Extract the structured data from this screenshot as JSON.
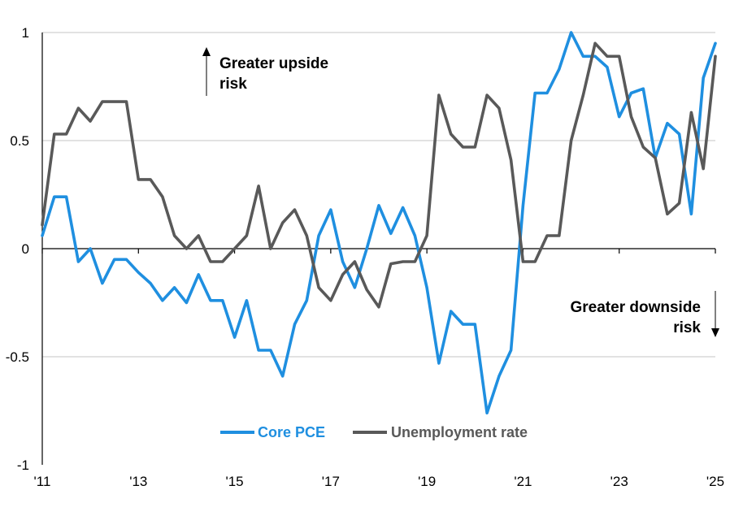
{
  "chart_data": {
    "type": "line",
    "x_tick_labels": [
      "'11",
      "'13",
      "'15",
      "'17",
      "'19",
      "'21",
      "'23",
      "'25"
    ],
    "y_tick_labels": [
      "1",
      "0.5",
      "0",
      "-0.5",
      "-1"
    ],
    "ylim": [
      -1,
      1
    ],
    "grid": true,
    "legend": {
      "placement": "bottom-center",
      "items": [
        {
          "name": "Core PCE",
          "color": "#1f8fe0"
        },
        {
          "name": "Unemployment rate",
          "color": "#595959"
        }
      ]
    },
    "annotations": {
      "upside": [
        "Greater upside",
        "risk"
      ],
      "downside": [
        "Greater downside",
        "risk"
      ]
    },
    "x": [
      2011.0,
      2011.25,
      2011.5,
      2011.75,
      2012.0,
      2012.25,
      2012.5,
      2012.75,
      2013.0,
      2013.25,
      2013.5,
      2013.75,
      2014.0,
      2014.25,
      2014.5,
      2014.75,
      2015.0,
      2015.25,
      2015.5,
      2015.75,
      2016.0,
      2016.25,
      2016.5,
      2016.75,
      2017.0,
      2017.25,
      2017.5,
      2017.75,
      2018.0,
      2018.25,
      2018.5,
      2018.75,
      2019.0,
      2019.25,
      2019.5,
      2019.75,
      2020.0,
      2020.25,
      2020.5,
      2020.75,
      2021.0,
      2021.25,
      2021.5,
      2021.75,
      2022.0,
      2022.25,
      2022.5,
      2022.75,
      2023.0,
      2023.25,
      2023.5,
      2023.75,
      2024.0,
      2024.25,
      2024.5,
      2024.75,
      2025.0
    ],
    "series": [
      {
        "name": "Core PCE",
        "color": "#1f8fe0",
        "values": [
          0.06,
          0.24,
          0.24,
          -0.06,
          0.0,
          -0.16,
          -0.05,
          -0.05,
          -0.11,
          -0.16,
          -0.24,
          -0.18,
          -0.25,
          -0.12,
          -0.24,
          -0.24,
          -0.41,
          -0.24,
          -0.47,
          -0.47,
          -0.59,
          -0.35,
          -0.24,
          0.06,
          0.18,
          -0.06,
          -0.18,
          0.0,
          0.2,
          0.07,
          0.19,
          0.06,
          -0.18,
          -0.53,
          -0.29,
          -0.35,
          -0.35,
          -0.76,
          -0.59,
          -0.47,
          0.2,
          0.72,
          0.72,
          0.83,
          1.0,
          0.89,
          0.89,
          0.84,
          0.61,
          0.72,
          0.74,
          0.42,
          0.58,
          0.53,
          0.16,
          0.79,
          0.95
        ]
      },
      {
        "name": "Unemployment rate",
        "color": "#595959",
        "values": [
          0.11,
          0.53,
          0.53,
          0.65,
          0.59,
          0.68,
          0.68,
          0.68,
          0.32,
          0.32,
          0.24,
          0.06,
          0.0,
          0.06,
          -0.06,
          -0.06,
          0.0,
          0.06,
          0.29,
          0.0,
          0.12,
          0.18,
          0.06,
          -0.18,
          -0.24,
          -0.12,
          -0.06,
          -0.19,
          -0.27,
          -0.07,
          -0.06,
          -0.06,
          0.06,
          0.71,
          0.53,
          0.47,
          0.47,
          0.71,
          0.65,
          0.41,
          -0.06,
          -0.06,
          0.06,
          0.06,
          0.5,
          0.71,
          0.95,
          0.89,
          0.89,
          0.61,
          0.47,
          0.42,
          0.16,
          0.21,
          0.63,
          0.37,
          0.89
        ]
      }
    ]
  }
}
